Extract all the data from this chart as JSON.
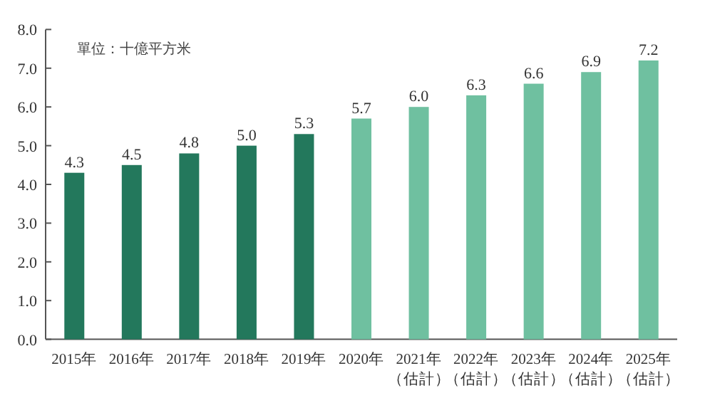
{
  "chart_data": {
    "type": "bar",
    "categories": [
      "2015年",
      "2016年",
      "2017年",
      "2018年",
      "2019年",
      "2020年",
      "2021年（估計）",
      "2022年（估計）",
      "2023年（估計）",
      "2024年（估計）",
      "2025年（估計）"
    ],
    "values": [
      4.3,
      4.5,
      4.8,
      5.0,
      5.3,
      5.7,
      6.0,
      6.3,
      6.6,
      6.9,
      7.2
    ],
    "colors": [
      "#23785c",
      "#23785c",
      "#23785c",
      "#23785c",
      "#23785c",
      "#6fc0a0",
      "#6fc0a0",
      "#6fc0a0",
      "#6fc0a0",
      "#6fc0a0",
      "#6fc0a0"
    ],
    "ylim": [
      0,
      8
    ],
    "yticks": [
      {
        "value": 0,
        "label": "0.0"
      },
      {
        "value": 1,
        "label": "1.0"
      },
      {
        "value": 2,
        "label": "2.0"
      },
      {
        "value": 3,
        "label": "3.0"
      },
      {
        "value": 4,
        "label": "4.0"
      },
      {
        "value": 5,
        "label": "5.0"
      },
      {
        "value": 6,
        "label": "6.0"
      },
      {
        "value": 7,
        "label": "7.0"
      },
      {
        "value": 8,
        "label": "8.0"
      }
    ],
    "value_labels": [
      "4.3",
      "4.5",
      "4.8",
      "5.0",
      "5.3",
      "5.7",
      "6.0",
      "6.3",
      "6.6",
      "6.9",
      "7.2"
    ],
    "annotations": [
      "單位：十億平方米"
    ]
  }
}
